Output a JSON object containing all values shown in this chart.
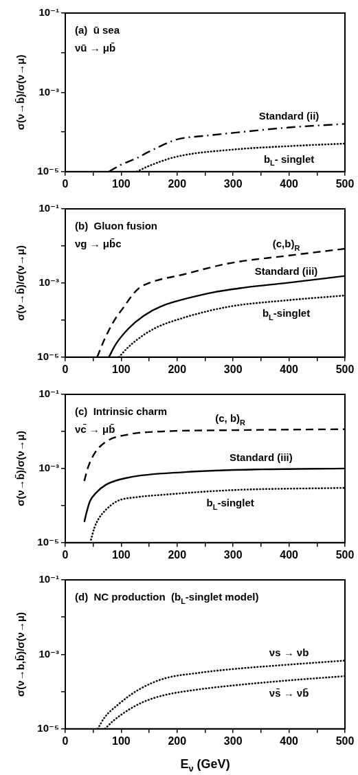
{
  "chart_data": [
    {
      "type": "line",
      "annotations": [
        "(a)  ū sea",
        "νū → μb̄"
      ],
      "ylabel": "σ(ν→b̄)/σ(ν→μ)",
      "log": "y",
      "xlim": [
        0,
        500
      ],
      "xticks": [
        0,
        {
          "value": 50,
          "label": null
        },
        100,
        {
          "value": 150,
          "label": null
        },
        200,
        {
          "value": 250,
          "label": null
        },
        300,
        {
          "value": 350,
          "label": null
        },
        400,
        {
          "value": 450,
          "label": null
        },
        500
      ],
      "ylim": [
        1e-05,
        0.1
      ],
      "yticks": [
        {
          "value": 1e-05,
          "label": "10⁻⁵"
        },
        {
          "value": 0.0001,
          "label": null
        },
        {
          "value": 0.001,
          "label": "10⁻³"
        },
        {
          "value": 0.01,
          "label": null
        },
        {
          "value": 0.1,
          "label": "10⁻¹"
        }
      ],
      "series": [
        {
          "name": "Standard (ii)",
          "color": "#000000",
          "line_style": "dashdot",
          "x": [
            78,
            100,
            128,
            150,
            200,
            250,
            300,
            400,
            500
          ],
          "values": [
            1e-05,
            1.5e-05,
            2.2e-05,
            3.2e-05,
            6.5e-05,
            8e-05,
            9.5e-05,
            0.00013,
            0.00016
          ]
        },
        {
          "name": "b$_{L}$- singlet",
          "color": "#000000",
          "line_style": "dotted",
          "x": [
            128,
            150,
            200,
            300,
            400,
            500
          ],
          "values": [
            1e-05,
            1.4e-05,
            2.4e-05,
            3.6e-05,
            4.4e-05,
            5.1e-05
          ]
        }
      ]
    },
    {
      "type": "line",
      "annotations": [
        "(b)  Gluon fusion",
        "νg → μb̄c"
      ],
      "ylabel": "σ(ν→b̄)/σ(ν→μ)",
      "log": "y",
      "xlim": [
        0,
        500
      ],
      "xticks": [
        0,
        {
          "value": 50,
          "label": null
        },
        100,
        {
          "value": 150,
          "label": null
        },
        200,
        {
          "value": 250,
          "label": null
        },
        300,
        {
          "value": 350,
          "label": null
        },
        400,
        {
          "value": 450,
          "label": null
        },
        500
      ],
      "ylim": [
        1e-05,
        0.1
      ],
      "yticks": [
        {
          "value": 1e-05,
          "label": "10⁻⁵"
        },
        {
          "value": 0.0001,
          "label": null
        },
        {
          "value": 0.001,
          "label": "10⁻³"
        },
        {
          "value": 0.01,
          "label": null
        },
        {
          "value": 0.1,
          "label": "10⁻¹"
        }
      ],
      "series": [
        {
          "name": "(c,b)$_{R}$",
          "color": "#000000",
          "line_style": "dashed",
          "x": [
            57,
            70,
            88,
            100,
            129,
            150,
            211,
            293,
            395,
            500
          ],
          "values": [
            1e-05,
            3e-05,
            0.0001,
            0.00018,
            0.00067,
            0.001,
            0.0017,
            0.0034,
            0.0054,
            0.0084
          ]
        },
        {
          "name": "Standard (iii)",
          "color": "#000000",
          "line_style": "solid",
          "x": [
            78,
            90,
            113,
            140,
            170,
            252,
            320,
            395,
            500
          ],
          "values": [
            1e-05,
            2.2e-05,
            5.9e-05,
            0.00013,
            0.00023,
            0.00051,
            0.00075,
            0.001,
            0.00155
          ]
        },
        {
          "name": "b$_{L}$-singlet",
          "color": "#000000",
          "line_style": "dotted",
          "x": [
            96,
            110,
            129,
            160,
            211,
            293,
            395,
            500
          ],
          "values": [
            1e-05,
            1.7e-05,
            3e-05,
            6e-05,
            0.000115,
            0.00023,
            0.00034,
            0.00046
          ]
        }
      ]
    },
    {
      "type": "line",
      "annotations": [
        "(c)  Intrinsic charm",
        "νc̄ → μb̄"
      ],
      "ylabel": "σ(ν→b̄)/σ(ν→μ)",
      "log": "y",
      "xlim": [
        0,
        500
      ],
      "xticks": [
        0,
        {
          "value": 50,
          "label": null
        },
        100,
        {
          "value": 150,
          "label": null
        },
        200,
        {
          "value": 250,
          "label": null
        },
        300,
        {
          "value": 350,
          "label": null
        },
        400,
        {
          "value": 450,
          "label": null
        },
        500
      ],
      "ylim": [
        1e-05,
        0.1
      ],
      "yticks": [
        {
          "value": 1e-05,
          "label": "10⁻⁵"
        },
        {
          "value": 0.0001,
          "label": null
        },
        {
          "value": 0.001,
          "label": "10⁻³"
        },
        {
          "value": 0.01,
          "label": null
        },
        {
          "value": 0.1,
          "label": "10⁻¹"
        }
      ],
      "series": [
        {
          "name": "(c, b)$_{R}$",
          "color": "#000000",
          "line_style": "dashed",
          "x": [
            34,
            40,
            52,
            72,
            113,
            174,
            295,
            500
          ],
          "values": [
            0.00046,
            0.001,
            0.0025,
            0.0052,
            0.0083,
            0.01,
            0.0108,
            0.0115
          ]
        },
        {
          "name": "Standard (iii)",
          "color": "#000000",
          "line_style": "solid",
          "x": [
            34,
            38,
            44,
            55,
            72,
            113,
            214,
            350,
            500
          ],
          "values": [
            3.6e-05,
            6.5e-05,
            0.00013,
            0.00022,
            0.00036,
            0.00057,
            0.0008,
            0.00095,
            0.001
          ]
        },
        {
          "name": "b$_{L}$-singlet",
          "color": "#000000",
          "line_style": "dotted",
          "x": [
            46,
            52,
            60,
            72,
            92,
            130,
            174,
            295,
            500
          ],
          "values": [
            1.2e-05,
            2.5e-05,
            4.5e-05,
            7.5e-05,
            0.00013,
            0.00017,
            0.000195,
            0.00026,
            0.0003
          ]
        }
      ]
    },
    {
      "type": "line",
      "annotations": [
        "(d)  NC production  (b$_{L}$-singlet model)"
      ],
      "ylabel": "σ(ν→b,b̄)/σ(ν→μ)",
      "xlabel": "E$_{ν}$ (GeV)",
      "log": "y",
      "xlim": [
        0,
        500
      ],
      "xticks": [
        0,
        {
          "value": 50,
          "label": null
        },
        100,
        {
          "value": 150,
          "label": null
        },
        200,
        {
          "value": 250,
          "label": null
        },
        300,
        {
          "value": 350,
          "label": null
        },
        400,
        {
          "value": 450,
          "label": null
        },
        500
      ],
      "ylim": [
        1e-05,
        0.1
      ],
      "yticks": [
        {
          "value": 1e-05,
          "label": "10⁻⁵"
        },
        {
          "value": 0.0001,
          "label": null
        },
        {
          "value": 0.001,
          "label": "10⁻³"
        },
        {
          "value": 0.01,
          "label": null
        },
        {
          "value": 0.1,
          "label": "10⁻¹"
        }
      ],
      "series": [
        {
          "name": "νs → νb",
          "color": "#000000",
          "line_style": "dotted",
          "x": [
            58,
            70,
            93,
            130,
            175,
            240,
            298,
            400,
            500
          ],
          "values": [
            1e-05,
            2e-05,
            4.3e-05,
            0.00011,
            0.00022,
            0.00032,
            0.0004,
            0.00053,
            0.00068
          ]
        },
        {
          "name": "νs̄ → νb̄",
          "color": "#000000",
          "line_style": "dotted",
          "x": [
            71,
            85,
            114,
            140,
            175,
            240,
            298,
            400,
            500
          ],
          "values": [
            1e-05,
            1.6e-05,
            3.3e-05,
            5.3e-05,
            7.9e-05,
            0.000115,
            0.000145,
            0.0002,
            0.00026
          ]
        }
      ]
    }
  ]
}
